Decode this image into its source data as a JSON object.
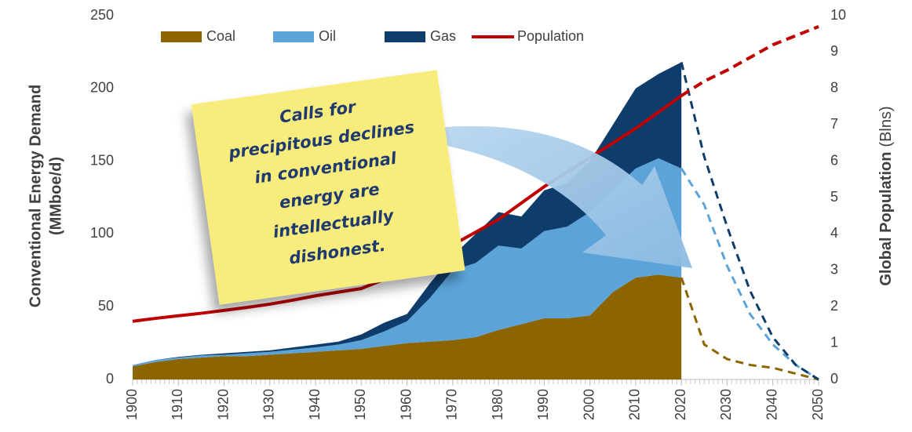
{
  "chart_data": {
    "type": "stacked-area",
    "ylabel": [
      "Conventional Energy Demand",
      "(MMboe/d)"
    ],
    "y2label": "Global Population",
    "y2label_unit": "(Blns)",
    "annotation": [
      "Calls for",
      "precipitous declines",
      "in conventional",
      "energy are",
      "intellectually",
      "dishonest."
    ],
    "x": [
      1900,
      1905,
      1910,
      1915,
      1920,
      1925,
      1930,
      1935,
      1940,
      1945,
      1950,
      1955,
      1960,
      1965,
      1970,
      1975,
      1980,
      1985,
      1990,
      1995,
      2000,
      2005,
      2010,
      2015,
      2020,
      2025,
      2030,
      2035,
      2040,
      2045,
      2050
    ],
    "xlim": [
      1900,
      2050
    ],
    "xticks": [
      1900,
      1910,
      1920,
      1930,
      1940,
      1950,
      1960,
      1970,
      1980,
      1990,
      2000,
      2010,
      2020,
      2030,
      2040,
      2050
    ],
    "ylim": [
      0,
      250
    ],
    "yticks": [
      0,
      50,
      100,
      150,
      200,
      250
    ],
    "y2lim": [
      0,
      10
    ],
    "y2ticks": [
      0,
      1,
      2,
      3,
      4,
      5,
      6,
      7,
      8,
      9,
      10
    ],
    "series": [
      {
        "name": "Coal",
        "color": "#8c6400",
        "values": [
          9,
          12,
          14,
          15,
          16,
          16,
          17,
          18,
          19,
          20,
          21,
          23,
          25,
          26,
          27,
          29,
          34,
          38,
          42,
          42,
          44,
          60,
          70,
          72,
          70,
          null,
          null,
          null,
          null,
          null,
          null
        ],
        "projected": [
          null,
          null,
          null,
          null,
          null,
          null,
          null,
          null,
          null,
          null,
          null,
          null,
          null,
          null,
          null,
          null,
          null,
          null,
          null,
          null,
          null,
          null,
          null,
          null,
          70,
          24,
          14,
          10,
          8,
          4,
          0
        ]
      },
      {
        "name": "Oil",
        "color": "#5ba3d9",
        "values": [
          1,
          1.5,
          1,
          1.5,
          1,
          2,
          2,
          2.5,
          3,
          4,
          6,
          10,
          15,
          30,
          48,
          51,
          58,
          52,
          60,
          63,
          71,
          70,
          75,
          80,
          75,
          null,
          null,
          null,
          null,
          null,
          null
        ],
        "projected": [
          null,
          null,
          null,
          null,
          null,
          null,
          null,
          null,
          null,
          null,
          null,
          null,
          null,
          null,
          null,
          null,
          null,
          null,
          null,
          null,
          null,
          null,
          null,
          null,
          75,
          96,
          64,
          35,
          16,
          6,
          0
        ]
      },
      {
        "name": "Gas",
        "color": "#0f3d6b",
        "values": [
          0,
          0,
          0.5,
          0.5,
          1,
          1,
          1,
          1.5,
          2,
          2,
          4,
          6,
          5,
          10,
          10,
          20,
          23,
          22,
          28,
          30,
          35,
          45,
          55,
          58,
          73,
          null,
          null,
          null,
          null,
          null,
          null
        ],
        "projected": [
          null,
          null,
          null,
          null,
          null,
          null,
          null,
          null,
          null,
          null,
          null,
          null,
          null,
          null,
          null,
          null,
          null,
          null,
          null,
          null,
          null,
          null,
          null,
          null,
          73,
          33,
          27,
          16,
          5,
          0,
          0
        ]
      },
      {
        "name": "Population",
        "color": "#c00000",
        "axis": "y2",
        "values": [
          1.6,
          1.68,
          1.75,
          1.82,
          1.9,
          1.98,
          2.07,
          2.18,
          2.3,
          2.4,
          2.5,
          2.75,
          3.0,
          3.33,
          3.7,
          4.05,
          4.4,
          4.85,
          5.3,
          5.7,
          6.1,
          6.5,
          6.9,
          7.35,
          7.8,
          null,
          null,
          null,
          null,
          null,
          null
        ],
        "projected": [
          null,
          null,
          null,
          null,
          null,
          null,
          null,
          null,
          null,
          null,
          null,
          null,
          null,
          null,
          null,
          null,
          null,
          null,
          null,
          null,
          null,
          null,
          null,
          null,
          7.8,
          8.2,
          8.5,
          8.85,
          9.2,
          9.45,
          9.7
        ]
      }
    ]
  }
}
